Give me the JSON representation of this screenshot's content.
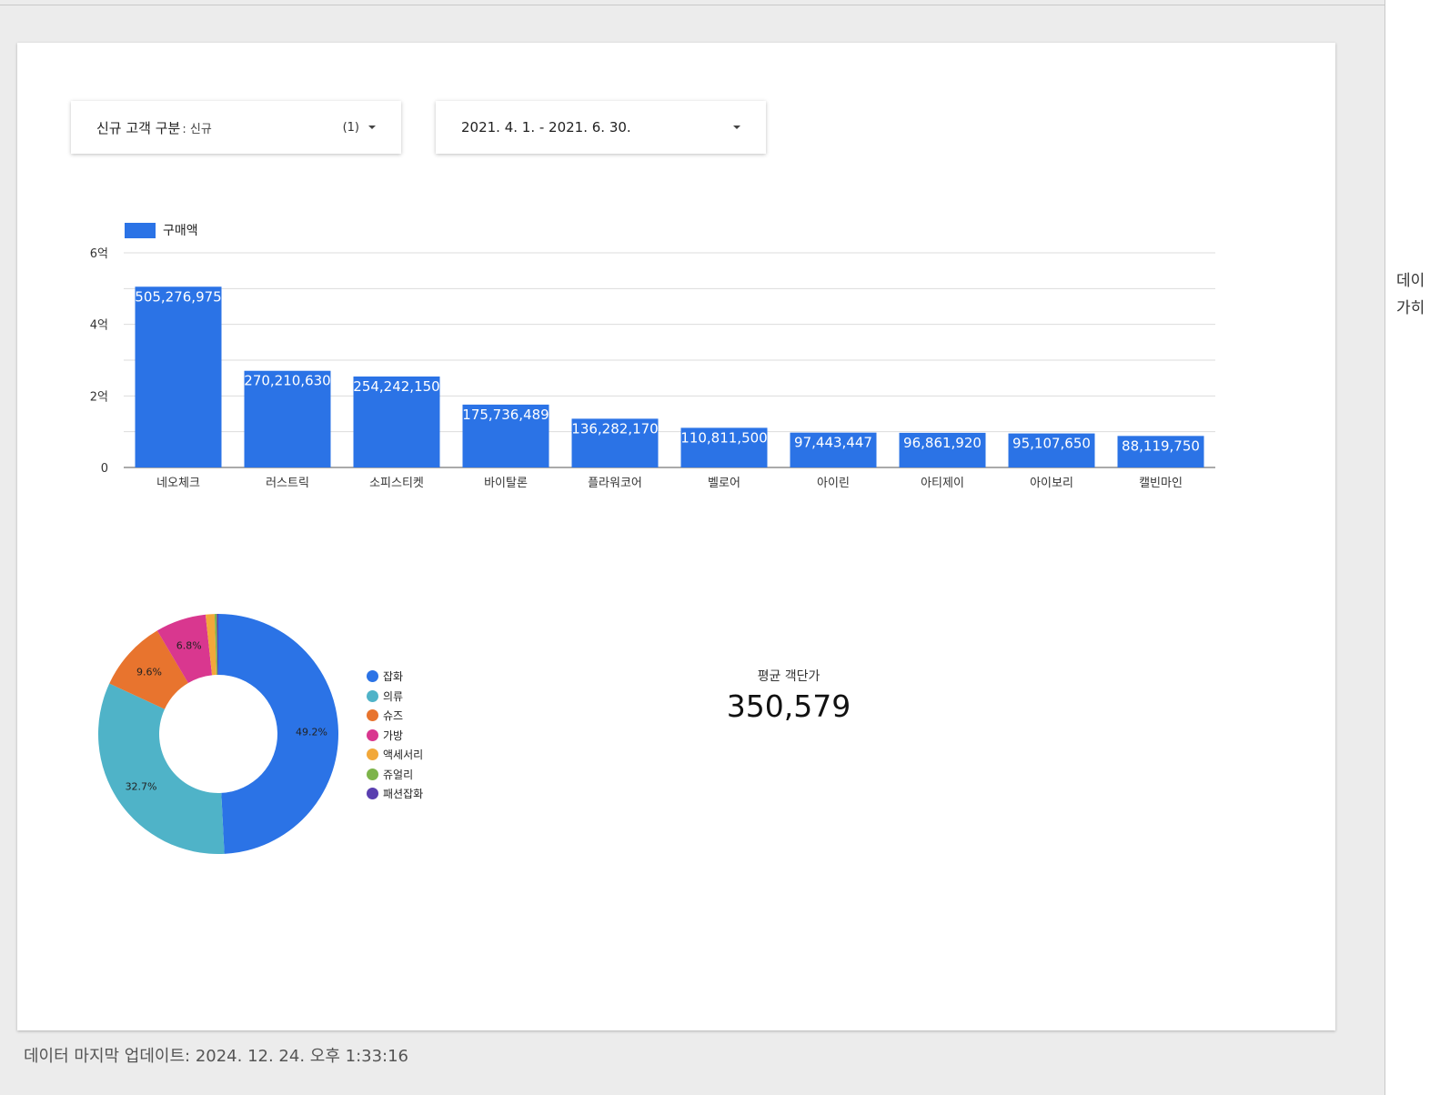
{
  "filters": {
    "customer_type": {
      "label": "신규 고객 구분",
      "value": ": 신규",
      "count": "(1)"
    },
    "date_range": {
      "value": "2021. 4. 1. - 2021. 6. 30."
    }
  },
  "right_panel": {
    "hint": "데이\n가히"
  },
  "footer": {
    "last_updated": "데이터 마지막 업데이트: 2024. 12. 24. 오후 1:33:16"
  },
  "scorecard": {
    "title": "평균 객단가",
    "value": "350,579"
  },
  "colors": {
    "bar": "#2b73e6",
    "background": "#ececec"
  },
  "chart_data": [
    {
      "type": "bar",
      "legend": "구매액",
      "categories": [
        "네오체크",
        "러스트릭",
        "소피스티켓",
        "바이탈론",
        "플라워코어",
        "벨로어",
        "아이린",
        "아티제이",
        "아이보리",
        "캘빈마인"
      ],
      "values": [
        505276975,
        270210630,
        254242150,
        175736489,
        136282170,
        110811500,
        97443447,
        96861920,
        95107650,
        88119750
      ],
      "labels": [
        "505,276,975",
        "270,210,630",
        "254,242,150",
        "175,736,489",
        "136,282,170",
        "110,811,500",
        "97,443,447",
        "96,861,920",
        "95,107,650",
        "88,119,750"
      ],
      "yticks": [
        "0",
        "2억",
        "4억",
        "6억"
      ],
      "ylim": [
        0,
        600000000
      ],
      "grid": true,
      "legend_position": "top-left"
    },
    {
      "type": "pie",
      "donut": true,
      "categories": [
        "잡화",
        "의류",
        "슈즈",
        "가방",
        "액세서리",
        "쥬얼리",
        "패션잡화"
      ],
      "values": [
        49.2,
        32.7,
        9.6,
        6.8,
        1.2,
        0.3,
        0.2
      ],
      "labels": [
        "49.2%",
        "32.7%",
        "9.6%",
        "6.8%",
        "",
        "",
        ""
      ],
      "colors": [
        "#2b73e6",
        "#4fb3c8",
        "#e8742e",
        "#d9378f",
        "#f2a83a",
        "#7db44a",
        "#5a3fb0"
      ],
      "legend_position": "right"
    }
  ]
}
